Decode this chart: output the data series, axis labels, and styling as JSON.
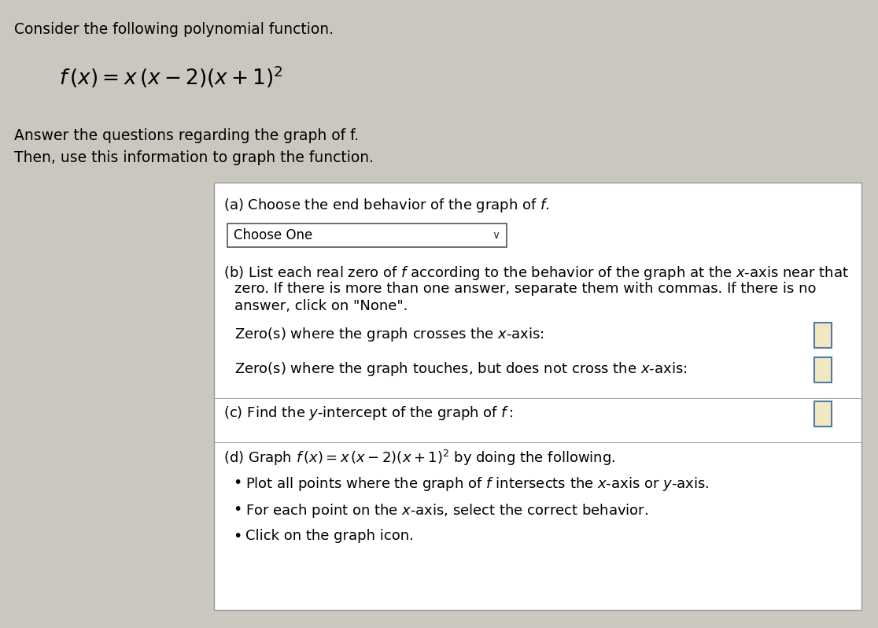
{
  "bg_color": "#cac7be",
  "box_bg_color": "#f0eeea",
  "box_border_color": "#999999",
  "title": "Consider the following polynomial function.",
  "formula": "f (x) = x (x−2)(x+1)²",
  "subtitle1": "Answer the questions regarding the graph of f.",
  "subtitle2": "Then, use this information to graph the function.",
  "part_a": "(a) Choose the end behavior of the graph of f.",
  "dropdown": "Choose One",
  "part_b1": "(b) List each real zero of f according to the behavior of the graph at the x-axis near that",
  "part_b2": "     zero. If there is more than one answer, separate them with commas. If there is no",
  "part_b3": "     answer, click on \"None\".",
  "crosses": "Zero(s) where the graph crosses the x-axis:",
  "touches": "Zero(s) where the graph touches, but does not cross the x-axis:",
  "part_c": "(c) Find the y-intercept of the graph of f:",
  "part_d": "(d) Graph f (x) = x (x−2)(x+1)² by doing the following.",
  "bullet1": "Plot all points where the graph of f intersects the x-axis or y-axis.",
  "bullet2": "For each point on the x-axis, select the correct behavior.",
  "bullet3": "Click on the graph icon.",
  "input_fill": "#f0e8c0",
  "input_border": "#5577aa",
  "dropdown_border": "#555555",
  "font_body": 13,
  "font_formula": 18,
  "font_title": 13.5
}
